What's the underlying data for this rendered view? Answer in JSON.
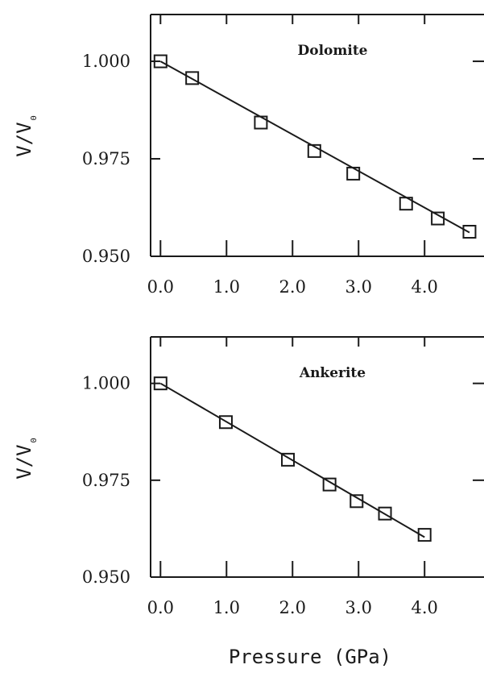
{
  "chart_data": [
    {
      "type": "scatter",
      "title": "Dolomite",
      "ylabel": "V/V₀",
      "xlabel": "",
      "xlim": [
        -0.15,
        4.9
      ],
      "ylim": [
        0.95,
        1.012
      ],
      "x_ticks": [
        0,
        1,
        2,
        3,
        4
      ],
      "x_tick_labels": [
        "0.0",
        "1.0",
        "2.0",
        "3.0",
        "4.0"
      ],
      "y_ticks": [
        0.95,
        0.975,
        1.0
      ],
      "y_tick_labels": [
        "0.950",
        "0.975",
        "1.000"
      ],
      "marker": "open-square",
      "fit_line": true,
      "points": [
        {
          "x": 0.0,
          "y": 1.0
        },
        {
          "x": 0.48,
          "y": 0.9957
        },
        {
          "x": 1.52,
          "y": 0.9843
        },
        {
          "x": 2.33,
          "y": 0.977
        },
        {
          "x": 2.92,
          "y": 0.9712
        },
        {
          "x": 3.72,
          "y": 0.9635
        },
        {
          "x": 4.2,
          "y": 0.9597
        },
        {
          "x": 4.68,
          "y": 0.9563
        }
      ],
      "fit": {
        "x": [
          0.0,
          4.68
        ],
        "y": [
          1.0,
          0.9561
        ]
      }
    },
    {
      "type": "scatter",
      "title": "Ankerite",
      "ylabel": "V/V₀",
      "xlabel": "",
      "xlim": [
        -0.15,
        4.9
      ],
      "ylim": [
        0.95,
        1.012
      ],
      "x_ticks": [
        0,
        1,
        2,
        3,
        4
      ],
      "x_tick_labels": [
        "0.0",
        "1.0",
        "2.0",
        "3.0",
        "4.0"
      ],
      "y_ticks": [
        0.95,
        0.975,
        1.0
      ],
      "y_tick_labels": [
        "0.950",
        "0.975",
        "1.000"
      ],
      "marker": "open-square",
      "fit_line": true,
      "points": [
        {
          "x": 0.0,
          "y": 1.0
        },
        {
          "x": 0.99,
          "y": 0.99
        },
        {
          "x": 1.93,
          "y": 0.9803
        },
        {
          "x": 2.56,
          "y": 0.9739
        },
        {
          "x": 2.97,
          "y": 0.9696
        },
        {
          "x": 3.4,
          "y": 0.9664
        },
        {
          "x": 4.0,
          "y": 0.9609
        }
      ],
      "fit": {
        "x": [
          0.0,
          4.0
        ],
        "y": [
          1.0,
          0.9603
        ]
      }
    }
  ],
  "figure": {
    "xlabel": "Pressure (GPa)",
    "colors": {
      "ink": "#1a1a1a",
      "background": "#ffffff"
    }
  }
}
